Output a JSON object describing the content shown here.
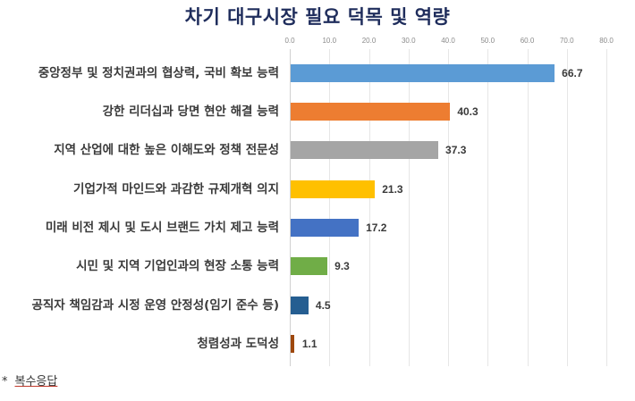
{
  "chart_data": {
    "type": "bar",
    "orientation": "horizontal",
    "title": "차기 대구시장 필요 덕목 및 역량",
    "xlabel": "",
    "ylabel": "",
    "xlim": [
      0,
      80
    ],
    "x_ticks": [
      "0.0",
      "10.0",
      "20.0",
      "30.0",
      "40.0",
      "50.0",
      "60.0",
      "70.0",
      "80.0"
    ],
    "grid": true,
    "legend": null,
    "categories": [
      "중앙정부 및 정치권과의 협상력, 국비 확보 능력",
      "강한 리더십과 당면 현안 해결 능력",
      "지역 산업에 대한 높은 이해도와 정책 전문성",
      "기업가적 마인드와 과감한 규제개혁 의지",
      "미래 비전 제시 및 도시 브랜드 가치 제고 능력",
      "시민 및 지역 기업인과의 현장 소통 능력",
      "공직자 책임감과 시정 운영 안정성(임기 준수 등)",
      "청렴성과 도덕성"
    ],
    "values": [
      66.7,
      40.3,
      37.3,
      21.3,
      17.2,
      9.3,
      4.5,
      1.1
    ],
    "value_labels": [
      "66.7",
      "40.3",
      "37.3",
      "21.3",
      "17.2",
      "9.3",
      "4.5",
      "1.1"
    ],
    "colors": [
      "#5b9bd5",
      "#ed7d31",
      "#a5a5a5",
      "#ffc000",
      "#4472c4",
      "#70ad47",
      "#255e91",
      "#9e480e"
    ],
    "footnote": "* 복수응답"
  },
  "footnote": {
    "asterisk": "*",
    "text": "복수응답"
  }
}
